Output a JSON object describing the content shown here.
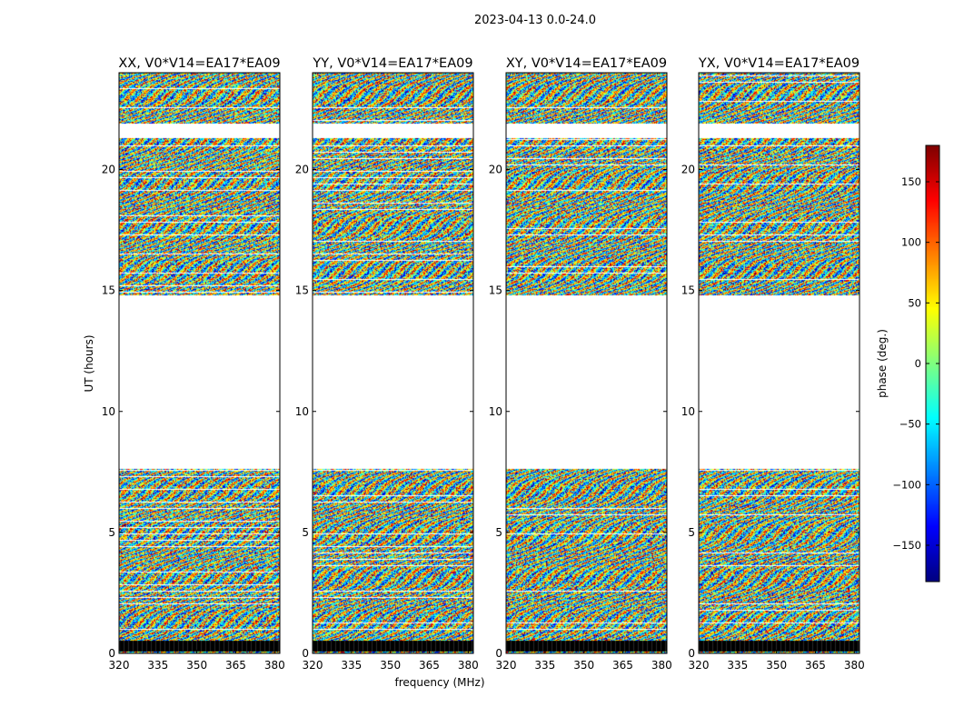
{
  "figure_title": "2023-04-13 0.0-24.0",
  "chart_data": {
    "type": "heatmap",
    "xlabel": "frequency (MHz)",
    "ylabel": "UT (hours)",
    "xlim": [
      320,
      382
    ],
    "ylim": [
      0,
      24
    ],
    "x_ticks": [
      320,
      335,
      350,
      365,
      380
    ],
    "y_ticks": [
      0,
      5,
      10,
      15,
      20
    ],
    "panels": [
      {
        "title": "XX, V0*V14=EA17*EA09"
      },
      {
        "title": "YY, V0*V14=EA17*EA09"
      },
      {
        "title": "XY, V0*V14=EA17*EA09"
      },
      {
        "title": "YX, V0*V14=EA17*EA09"
      }
    ],
    "data_gaps_ut": [
      [
        7.65,
        14.8
      ],
      [
        21.3,
        21.9
      ]
    ],
    "colorbar": {
      "label": "phase (deg.)",
      "range": [
        -180,
        180
      ],
      "ticks": [
        -150,
        -100,
        -50,
        0,
        50,
        100,
        150
      ],
      "tick_labels": [
        "−150",
        "−100",
        "−50",
        "0",
        "50",
        "100",
        "150"
      ],
      "colormap": "jet"
    }
  }
}
